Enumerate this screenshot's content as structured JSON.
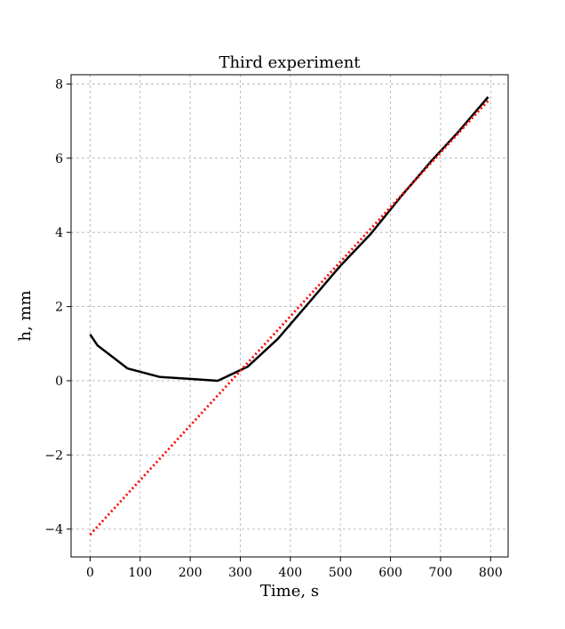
{
  "chart_data": {
    "type": "line",
    "title": "Third experiment",
    "xlabel": "Time, s",
    "ylabel": "h, mm",
    "xlim": [
      -38,
      835
    ],
    "ylim": [
      -4.75,
      8.25
    ],
    "xticks": [
      0,
      100,
      200,
      300,
      400,
      500,
      600,
      700,
      800
    ],
    "yticks": [
      -4,
      -2,
      0,
      2,
      4,
      6,
      8
    ],
    "grid": true,
    "series": [
      {
        "style": "solid",
        "color": "#000000",
        "x": [
          0,
          15,
          75,
          140,
          200,
          255,
          315,
          375,
          440,
          500,
          560,
          620,
          680,
          735,
          795
        ],
        "y": [
          1.25,
          0.95,
          0.33,
          0.1,
          0.05,
          0.0,
          0.38,
          1.13,
          2.15,
          3.1,
          3.95,
          4.95,
          5.9,
          6.7,
          7.65
        ]
      },
      {
        "style": "dotted",
        "color": "#ff0000",
        "x": [
          0,
          795
        ],
        "y": [
          -4.15,
          7.55
        ]
      }
    ]
  }
}
